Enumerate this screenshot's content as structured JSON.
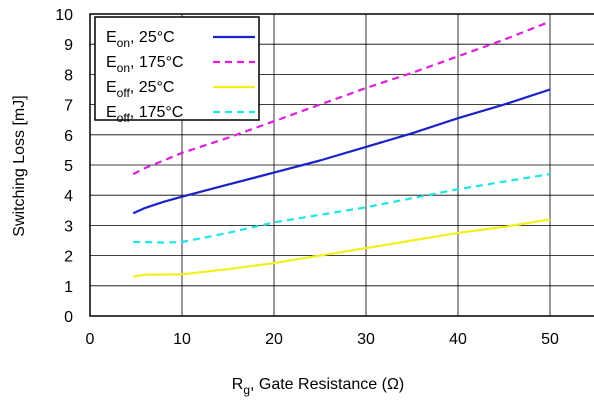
{
  "chart_data": {
    "type": "line",
    "xlabel": {
      "main": "R",
      "sub": "g",
      "rest": ", Gate Resistance (Ω)"
    },
    "ylabel": "Switching Loss [mJ]",
    "xlim": [
      0,
      55
    ],
    "ylim": [
      0,
      10
    ],
    "xticks": [
      0,
      10,
      20,
      30,
      40,
      50
    ],
    "yticks": [
      0,
      1,
      2,
      3,
      4,
      5,
      6,
      7,
      8,
      9,
      10
    ],
    "grid": true,
    "legend_position": "top-left",
    "series": [
      {
        "name": "Eon, 25°C",
        "label_main": "E",
        "label_sub": "on",
        "label_rest": ", 25°C",
        "color": "#1a22c8",
        "dash": "solid",
        "x": [
          4.7,
          6,
          8,
          10,
          15,
          20,
          25,
          30,
          35,
          40,
          45,
          50
        ],
        "y": [
          3.4,
          3.58,
          3.78,
          3.95,
          4.35,
          4.75,
          5.15,
          5.6,
          6.05,
          6.55,
          7.0,
          7.5
        ]
      },
      {
        "name": "Eon, 175°C",
        "label_main": "E",
        "label_sub": "on",
        "label_rest": ", 175°C",
        "color": "#e01ee0",
        "dash": "dashed",
        "x": [
          4.7,
          6,
          8,
          10,
          15,
          20,
          25,
          30,
          35,
          40,
          45,
          50
        ],
        "y": [
          4.7,
          4.9,
          5.15,
          5.4,
          5.9,
          6.45,
          7.0,
          7.55,
          8.05,
          8.6,
          9.15,
          9.75
        ]
      },
      {
        "name": "Eoff, 25°C",
        "label_main": "E",
        "label_sub": "off",
        "label_rest": ", 25°C",
        "color": "#f2ef1c",
        "dash": "solid",
        "x": [
          4.7,
          6,
          8,
          10,
          15,
          20,
          25,
          30,
          35,
          40,
          45,
          50
        ],
        "y": [
          1.3,
          1.37,
          1.37,
          1.38,
          1.55,
          1.75,
          2.0,
          2.25,
          2.5,
          2.75,
          2.95,
          3.2
        ]
      },
      {
        "name": "Eoff, 175°C",
        "label_main": "E",
        "label_sub": "off",
        "label_rest": ", 175°C",
        "color": "#1ee6e6",
        "dash": "dashed",
        "x": [
          4.7,
          6,
          8,
          10,
          15,
          20,
          25,
          30,
          35,
          40,
          45,
          50
        ],
        "y": [
          2.45,
          2.45,
          2.43,
          2.45,
          2.75,
          3.1,
          3.35,
          3.6,
          3.9,
          4.2,
          4.45,
          4.7
        ]
      }
    ]
  }
}
